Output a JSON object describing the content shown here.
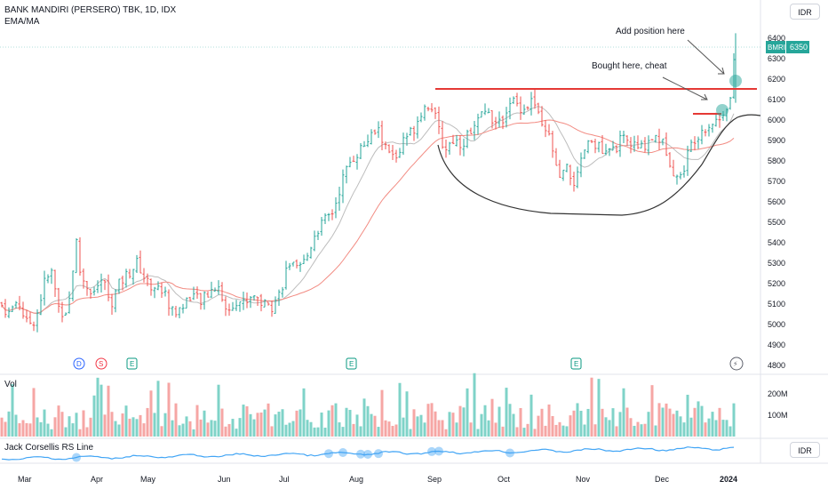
{
  "header": {
    "symbol_title": "BANK MANDIRI (PERSERO) TBK, 1D, IDX",
    "indicator": "EMA/MA"
  },
  "currency": {
    "main": "IDR",
    "rs_panel": "IDR"
  },
  "price_axis": {
    "ticks": [
      "6400",
      "6300",
      "6200",
      "6100",
      "6000",
      "5900",
      "5800",
      "5700",
      "5600",
      "5500",
      "5400",
      "5300",
      "5200",
      "5100",
      "5000",
      "4900",
      "4800"
    ]
  },
  "last_price": {
    "ticker": "BMRI",
    "value": "6350",
    "color": "#26a69a"
  },
  "volume_panel": {
    "label": "Vol",
    "ticks": [
      "200M",
      "100M"
    ]
  },
  "rs_panel": {
    "label": "Jack Corsellis RS Line"
  },
  "time_axis": {
    "labels": [
      "Mar",
      "Apr",
      "May",
      "Jun",
      "Jul",
      "Aug",
      "Sep",
      "Oct",
      "Nov",
      "Dec",
      "2024"
    ]
  },
  "annotations": {
    "add_position": "Add position here",
    "bought_here": "Bought here, cheat"
  },
  "event_markers": [
    {
      "letter": "D",
      "type": "dividend",
      "color": "#2962ff"
    },
    {
      "letter": "S",
      "type": "split",
      "color": "#f23645"
    },
    {
      "letter": "E",
      "type": "earnings",
      "color": "#089981"
    },
    {
      "letter": "E",
      "type": "earnings",
      "color": "#089981"
    },
    {
      "letter": "E",
      "type": "earnings",
      "color": "#089981"
    },
    {
      "letter": "⚡",
      "type": "news",
      "color": "#5d606b"
    }
  ],
  "colors": {
    "up": "#26a69a",
    "down": "#ef5350",
    "ema": "#bdbdbd",
    "ma": "#f28b82",
    "resistance": "#e53935",
    "rs_line": "#42a5f5"
  },
  "chart_data": {
    "type": "ohlc",
    "price_range": [
      4760,
      6480
    ],
    "volume_range": [
      0,
      260
    ],
    "resistance_levels": [
      6150,
      6020
    ],
    "last_close": 6350,
    "approx_series": "price path estimated from chart",
    "keypoints": [
      [
        0,
        5100
      ],
      [
        10,
        5050
      ],
      [
        20,
        5120
      ],
      [
        30,
        5000
      ],
      [
        40,
        5020
      ],
      [
        50,
        5200
      ],
      [
        58,
        5250
      ],
      [
        66,
        5080
      ],
      [
        73,
        5050
      ],
      [
        80,
        5150
      ],
      [
        85,
        5450
      ],
      [
        88,
        5280
      ],
      [
        95,
        5200
      ],
      [
        105,
        5150
      ],
      [
        115,
        5220
      ],
      [
        125,
        5100
      ],
      [
        135,
        5200
      ],
      [
        145,
        5250
      ],
      [
        155,
        5300
      ],
      [
        165,
        5200
      ],
      [
        175,
        5180
      ],
      [
        185,
        5150
      ],
      [
        195,
        5050
      ],
      [
        205,
        5080
      ],
      [
        215,
        5150
      ],
      [
        225,
        5100
      ],
      [
        235,
        5150
      ],
      [
        245,
        5200
      ],
      [
        255,
        5050
      ],
      [
        265,
        5120
      ],
      [
        275,
        5100
      ],
      [
        285,
        5150
      ],
      [
        295,
        5100
      ],
      [
        305,
        5080
      ],
      [
        315,
        5150
      ],
      [
        325,
        5300
      ],
      [
        335,
        5250
      ],
      [
        345,
        5320
      ],
      [
        355,
        5450
      ],
      [
        365,
        5500
      ],
      [
        375,
        5550
      ],
      [
        385,
        5700
      ],
      [
        395,
        5800
      ],
      [
        405,
        5850
      ],
      [
        415,
        5900
      ],
      [
        425,
        5950
      ],
      [
        435,
        5850
      ],
      [
        445,
        5800
      ],
      [
        455,
        5900
      ],
      [
        465,
        5950
      ],
      [
        475,
        6050
      ],
      [
        485,
        6080
      ],
      [
        490,
        6000
      ],
      [
        500,
        5850
      ],
      [
        510,
        5900
      ],
      [
        520,
        5880
      ],
      [
        530,
        5950
      ],
      [
        540,
        6000
      ],
      [
        550,
        6050
      ],
      [
        560,
        5950
      ],
      [
        570,
        6050
      ],
      [
        575,
        6100
      ],
      [
        580,
        6080
      ],
      [
        590,
        6050
      ],
      [
        600,
        6100
      ],
      [
        610,
        5950
      ],
      [
        620,
        5900
      ],
      [
        628,
        5700
      ],
      [
        638,
        5750
      ],
      [
        648,
        5680
      ],
      [
        658,
        5850
      ],
      [
        668,
        5900
      ],
      [
        680,
        5820
      ],
      [
        690,
        5850
      ],
      [
        700,
        5900
      ],
      [
        710,
        5880
      ],
      [
        720,
        5850
      ],
      [
        730,
        5900
      ],
      [
        740,
        5920
      ],
      [
        750,
        5850
      ],
      [
        758,
        5750
      ],
      [
        765,
        5700
      ],
      [
        772,
        5800
      ],
      [
        780,
        5900
      ],
      [
        790,
        5950
      ],
      [
        800,
        5980
      ],
      [
        810,
        6000
      ],
      [
        815,
        6050
      ],
      [
        822,
        6100
      ],
      [
        828,
        6350
      ]
    ],
    "series": [
      {
        "name": "Jack Corsellis RS Line"
      }
    ]
  }
}
